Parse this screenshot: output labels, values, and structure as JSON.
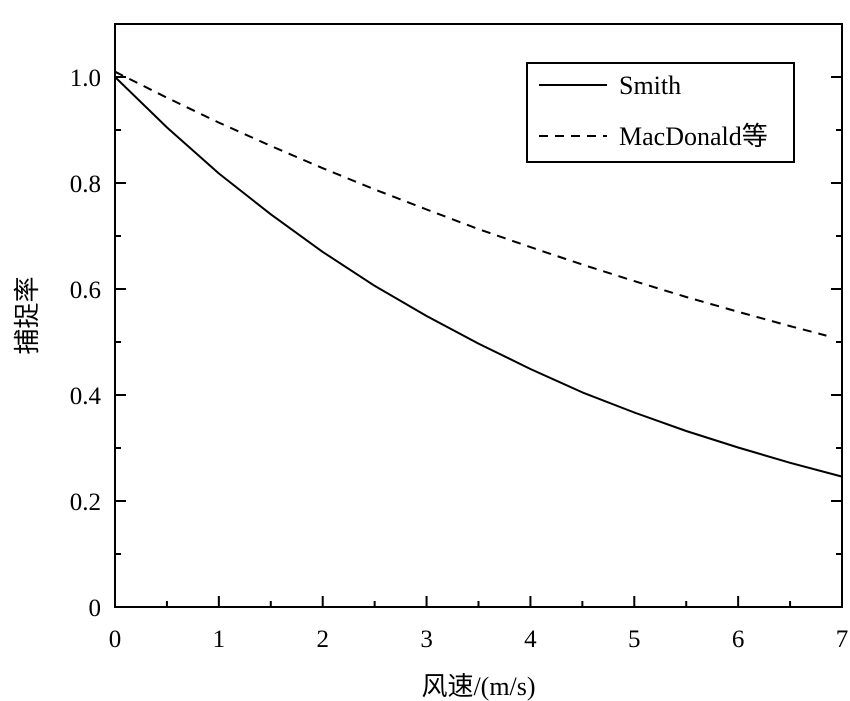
{
  "chart_data": {
    "type": "line",
    "title": "",
    "xlabel": "风速/(m/s)",
    "ylabel": "捕捉率",
    "xlim": [
      0,
      7
    ],
    "ylim": [
      0,
      1.1
    ],
    "xticks": [
      0,
      1,
      2,
      3,
      4,
      5,
      6,
      7
    ],
    "xtick_labels": [
      "0",
      "1",
      "2",
      "3",
      "4",
      "5",
      "6",
      "7"
    ],
    "yticks": [
      0,
      0.2,
      0.4,
      0.6,
      0.8,
      1.0
    ],
    "ytick_labels": [
      "0",
      "0.2",
      "0.4",
      "0.6",
      "0.8",
      "1.0"
    ],
    "grid": false,
    "legend_position": "top-right",
    "series": [
      {
        "name": "Smith",
        "style": "solid",
        "color": "#000000",
        "x": [
          0,
          0.5,
          1,
          1.5,
          2,
          2.5,
          3,
          3.5,
          4,
          4.5,
          5,
          5.5,
          6,
          6.5,
          7
        ],
        "y": [
          1.0,
          0.905,
          0.818,
          0.741,
          0.67,
          0.606,
          0.549,
          0.497,
          0.449,
          0.405,
          0.367,
          0.332,
          0.301,
          0.272,
          0.246
        ]
      },
      {
        "name": "MacDonald等",
        "style": "dashed",
        "color": "#000000",
        "x": [
          0,
          0.5,
          1,
          1.5,
          2,
          2.5,
          3,
          3.5,
          4,
          4.5,
          5,
          5.5,
          6,
          6.5,
          6.85
        ],
        "y": [
          1.01,
          0.961,
          0.914,
          0.87,
          0.828,
          0.788,
          0.75,
          0.713,
          0.679,
          0.646,
          0.615,
          0.585,
          0.557,
          0.53,
          0.512
        ]
      }
    ]
  }
}
